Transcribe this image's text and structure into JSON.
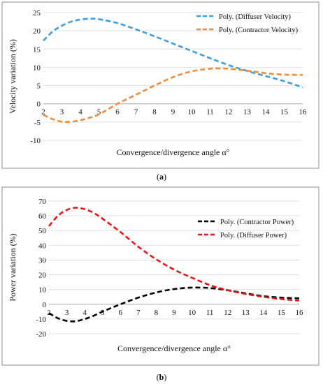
{
  "chart_data": [
    {
      "type": "line",
      "caption_open": "(",
      "caption_label": "a",
      "caption_close": ")",
      "xlabel": "Convergence/divergence angle α°",
      "ylabel": "Velocity variation (%)",
      "xlim": [
        2,
        16
      ],
      "ylim": [
        -10,
        25
      ],
      "x_ticks": [
        2,
        3,
        4,
        5,
        6,
        7,
        8,
        9,
        10,
        11,
        12,
        13,
        14,
        15,
        16
      ],
      "y_ticks": [
        -10,
        -5,
        0,
        5,
        10,
        15,
        20,
        25
      ],
      "legend_position": "top-right",
      "series": [
        {
          "name": "Poly. (Diffuser Velocity)",
          "color": "#3d9fdb",
          "x": [
            2,
            2.5,
            3,
            3.5,
            4,
            4.5,
            5,
            6,
            7,
            8,
            9,
            10,
            11,
            12,
            13,
            14,
            15,
            16
          ],
          "y": [
            17.3,
            19.8,
            21.4,
            22.5,
            23.1,
            23.3,
            23.2,
            22.1,
            20.4,
            18.5,
            16.5,
            14.5,
            12.5,
            10.6,
            9.0,
            7.6,
            6.2,
            4.5
          ]
        },
        {
          "name": "Poly. (Contractor Velocity)",
          "color": "#ef8c3b",
          "x": [
            2,
            2.5,
            3,
            3.5,
            4,
            4.5,
            5,
            6,
            7,
            8,
            9,
            10,
            11,
            11.5,
            12,
            13,
            14,
            15,
            16
          ],
          "y": [
            -3.0,
            -4.2,
            -4.9,
            -4.9,
            -4.5,
            -3.8,
            -2.9,
            0.0,
            2.5,
            5.0,
            7.3,
            8.9,
            9.6,
            9.7,
            9.6,
            9.1,
            8.4,
            8.0,
            7.9
          ]
        }
      ]
    },
    {
      "type": "line",
      "caption_open": "(",
      "caption_label": "b",
      "caption_close": ")",
      "xlabel": "Convergence/divergence angle α°",
      "ylabel": "Power variation (%)",
      "xlim": [
        2,
        16
      ],
      "ylim": [
        -20,
        70
      ],
      "x_ticks": [
        2,
        3,
        4,
        5,
        6,
        7,
        8,
        9,
        10,
        11,
        12,
        13,
        14,
        15,
        16
      ],
      "y_ticks": [
        -20,
        -10,
        0,
        10,
        20,
        30,
        40,
        50,
        60,
        70
      ],
      "legend_position": "top-right",
      "series": [
        {
          "name": "Poly. (Contractor Power)",
          "color": "#000000",
          "x": [
            2,
            2.5,
            3,
            3.5,
            4,
            4.5,
            5,
            6,
            7,
            8,
            9,
            10,
            11,
            12,
            13,
            14,
            15,
            16
          ],
          "y": [
            -6.0,
            -9.5,
            -11.3,
            -11.5,
            -10.0,
            -7.8,
            -5.0,
            0.0,
            4.5,
            8.0,
            10.3,
            11.3,
            11.0,
            9.5,
            7.4,
            5.5,
            4.5,
            4.0
          ]
        },
        {
          "name": "Poly. (Diffuser Power)",
          "color": "#e8161b",
          "x": [
            2,
            2.5,
            3,
            3.5,
            4,
            4.5,
            5,
            6,
            7,
            8,
            9,
            10,
            11,
            12,
            13,
            14,
            15,
            16
          ],
          "y": [
            53,
            60,
            64,
            65.5,
            64.5,
            62,
            58,
            49,
            39,
            30.5,
            23.5,
            18,
            13,
            9.5,
            7.0,
            5.0,
            3.5,
            2.5
          ]
        }
      ]
    }
  ]
}
